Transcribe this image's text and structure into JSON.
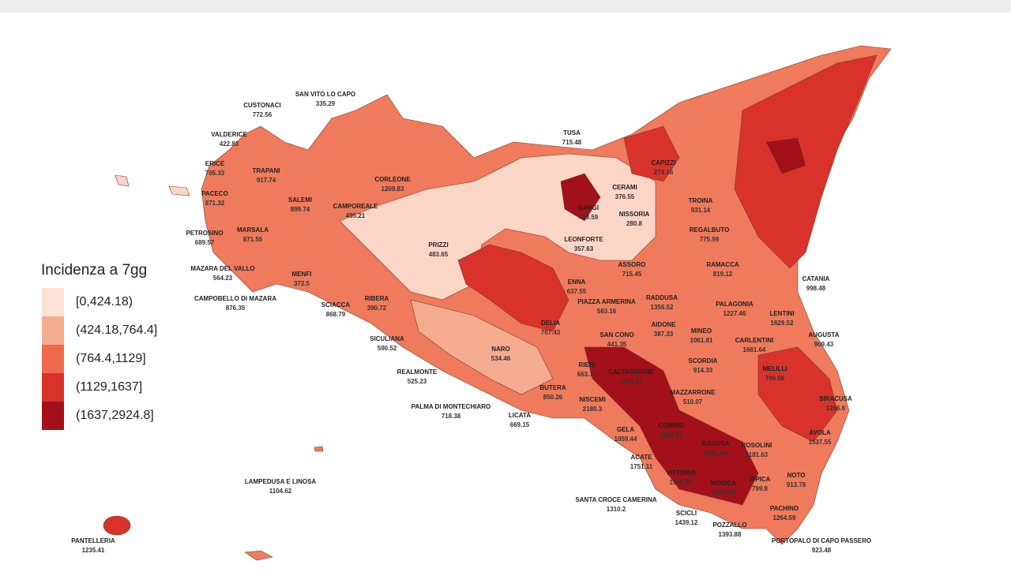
{
  "legend": {
    "title": "Incidenza a 7gg",
    "classes": [
      {
        "label": "[0,424.18)",
        "color": "#fde3d6"
      },
      {
        "label": "(424.18,764.4]",
        "color": "#f5ab8f"
      },
      {
        "label": "(764.4,1129]",
        "color": "#ef6a4c"
      },
      {
        "label": "(1129,1637]",
        "color": "#d9322a"
      },
      {
        "label": "(1637,2924.8]",
        "color": "#a3101a"
      }
    ]
  },
  "towns": [
    {
      "name": "SAN VITO LO CAPO",
      "value": "335.29"
    },
    {
      "name": "CUSTONACI",
      "value": "772.56"
    },
    {
      "name": "VALDERICE",
      "value": "422.83"
    },
    {
      "name": "ERICE",
      "value": "705.33"
    },
    {
      "name": "TRAPANI",
      "value": "917.74"
    },
    {
      "name": "PACECO",
      "value": "871.32"
    },
    {
      "name": "SALEMI",
      "value": "899.74"
    },
    {
      "name": "CORLEONE",
      "value": "1209.83"
    },
    {
      "name": "CAMPOREALE",
      "value": "495.21"
    },
    {
      "name": "PETROSINO",
      "value": "689.57"
    },
    {
      "name": "MARSALA",
      "value": "871.55"
    },
    {
      "name": "PRIZZI",
      "value": "483.65"
    },
    {
      "name": "MAZARA DEL VALLO",
      "value": "564.23"
    },
    {
      "name": "MENFI",
      "value": "372.5"
    },
    {
      "name": "CAMPOBELLO DI MAZARA",
      "value": "876.35"
    },
    {
      "name": "SCIACCA",
      "value": "868.79"
    },
    {
      "name": "RIBERA",
      "value": "390.72"
    },
    {
      "name": "SICULIANA",
      "value": "590.52"
    },
    {
      "name": "REALMONTE",
      "value": "525.23"
    },
    {
      "name": "PALMA DI MONTECHIARO",
      "value": "718.38"
    },
    {
      "name": "LICATA",
      "value": "669.15"
    },
    {
      "name": "NARO",
      "value": "534.46"
    },
    {
      "name": "BUTERA",
      "value": "850.26"
    },
    {
      "name": "DELIA",
      "value": "707.43"
    },
    {
      "name": "RIESI",
      "value": "663.74"
    },
    {
      "name": "CALTAGIRONE",
      "value": "1491.39"
    },
    {
      "name": "SAN CONO",
      "value": "441.35"
    },
    {
      "name": "NISCEMI",
      "value": "2180.3"
    },
    {
      "name": "GELA",
      "value": "1059.44"
    },
    {
      "name": "ACATE",
      "value": "1751.11"
    },
    {
      "name": "COMISO",
      "value": "2351.72"
    },
    {
      "name": "VITTORIA",
      "value": "1580.63"
    },
    {
      "name": "SANTA CROCE CAMERINA",
      "value": "1310.2"
    },
    {
      "name": "SCICLI",
      "value": "1439.12"
    },
    {
      "name": "MODICA",
      "value": "1374.36"
    },
    {
      "name": "POZZALLO",
      "value": "1393.88"
    },
    {
      "name": "RAGUSA",
      "value": "1601.64"
    },
    {
      "name": "ROSOLINI",
      "value": "1181.63"
    },
    {
      "name": "ISPICA",
      "value": "799.8"
    },
    {
      "name": "NOTO",
      "value": "913.78"
    },
    {
      "name": "PACHINO",
      "value": "1264.59"
    },
    {
      "name": "PORTOPALO DI CAPO PASSERO",
      "value": "923.48"
    },
    {
      "name": "AVOLA",
      "value": "1537.55"
    },
    {
      "name": "SIRACUSA",
      "value": "1266.6"
    },
    {
      "name": "MELILLI",
      "value": "799.56"
    },
    {
      "name": "AUGUSTA",
      "value": "909.43"
    },
    {
      "name": "CARLENTINI",
      "value": "1661.64"
    },
    {
      "name": "LENTINI",
      "value": "1629.52"
    },
    {
      "name": "SCORDIA",
      "value": "914.33"
    },
    {
      "name": "MINEO",
      "value": "1061.81"
    },
    {
      "name": "MAZZARRONE",
      "value": "510.07"
    },
    {
      "name": "PALAGONIA",
      "value": "1227.46"
    },
    {
      "name": "RADDUSA",
      "value": "1356.52"
    },
    {
      "name": "AIDONE",
      "value": "387.33"
    },
    {
      "name": "RAMACCA",
      "value": "819.12"
    },
    {
      "name": "CATANIA",
      "value": "998.48"
    },
    {
      "name": "PIAZZA ARMERINA",
      "value": "583.16"
    },
    {
      "name": "ENNA",
      "value": "637.55"
    },
    {
      "name": "ASSORO",
      "value": "715.45"
    },
    {
      "name": "LEONFORTE",
      "value": "357.63"
    },
    {
      "name": "NISSORIA",
      "value": "280.8"
    },
    {
      "name": "CERAMI",
      "value": "376.55"
    },
    {
      "name": "GANGI",
      "value": "429.59"
    },
    {
      "name": "TUSA",
      "value": "715.48"
    },
    {
      "name": "CAPIZZI",
      "value": "274.16"
    },
    {
      "name": "TROINA",
      "value": "931.14"
    },
    {
      "name": "REGALBUTO",
      "value": "775.99"
    },
    {
      "name": "LAMPEDUSA E LINOSA",
      "value": "1104.62"
    },
    {
      "name": "PANTELLERIA",
      "value": "1235.41"
    }
  ]
}
